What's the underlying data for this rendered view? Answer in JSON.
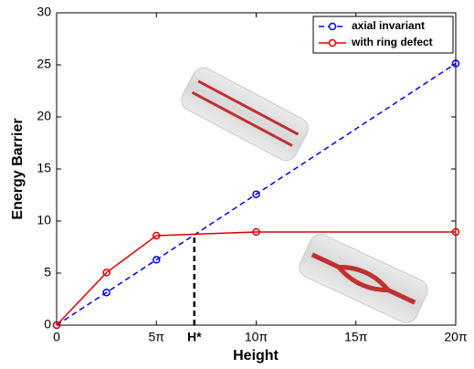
{
  "chart_data": {
    "type": "line",
    "x_label": "Height",
    "y_label": "Energy Barrier",
    "xlim": [
      0,
      20
    ],
    "ylim": [
      0,
      30
    ],
    "xticks": [
      0,
      {
        "value": 5,
        "label": "5π"
      },
      {
        "value": 10,
        "label": "10π"
      },
      {
        "value": 15,
        "label": "15π"
      },
      {
        "value": 20,
        "label": "20π"
      }
    ],
    "yticks": [
      0,
      5,
      10,
      15,
      20,
      25,
      30
    ],
    "series": [
      {
        "name": "axial invariant",
        "color": "#0000ff",
        "dashed": true,
        "x": [
          0,
          2.5,
          5,
          10,
          20
        ],
        "values": [
          0,
          3.14,
          6.28,
          12.57,
          25.13
        ]
      },
      {
        "name": "with ring defect",
        "color": "#e00000",
        "dashed": false,
        "x": [
          0,
          2.5,
          5,
          10,
          20
        ],
        "values": [
          0,
          5.05,
          8.6,
          8.95,
          8.95
        ]
      }
    ],
    "annotation": {
      "text": "H*",
      "x": 6.9,
      "y": 8.7
    },
    "legend": "top-right"
  }
}
